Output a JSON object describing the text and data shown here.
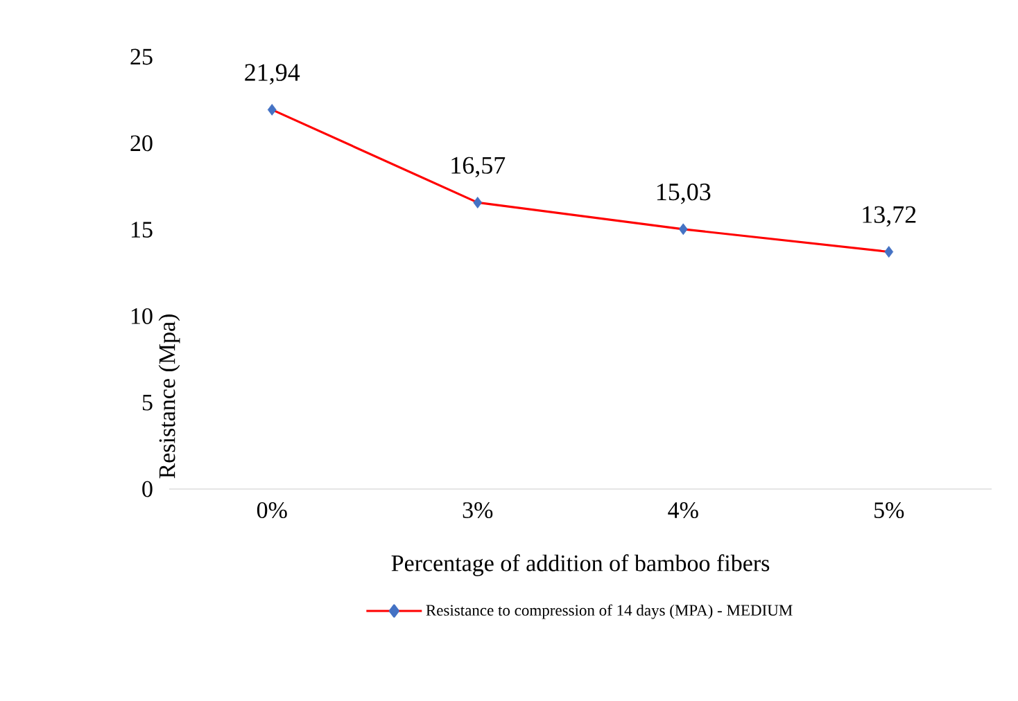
{
  "chart_data": {
    "type": "line",
    "xlabel": "Percentage of addition of bamboo fibers",
    "ylabel": "Resistance (Mpa)",
    "categories": [
      "0%",
      "3%",
      "4%",
      "5%"
    ],
    "series": [
      {
        "name": "Resistance to compression of 14 days (MPA) - MEDIUM",
        "color": "#ff0000",
        "colors": [
          "#4472c4",
          "#4472c4",
          "#4472c4",
          "#4472c4"
        ],
        "values": [
          21.94,
          16.57,
          15.03,
          13.72
        ],
        "value_labels": [
          "21,94",
          "16,57",
          "15,03",
          "13,72"
        ]
      }
    ],
    "ylim": [
      0,
      25
    ],
    "yticks": [
      0,
      5,
      10,
      15,
      20,
      25
    ],
    "grid": false,
    "legend": "bottom",
    "marker": "diamond",
    "line_style": "solid"
  }
}
